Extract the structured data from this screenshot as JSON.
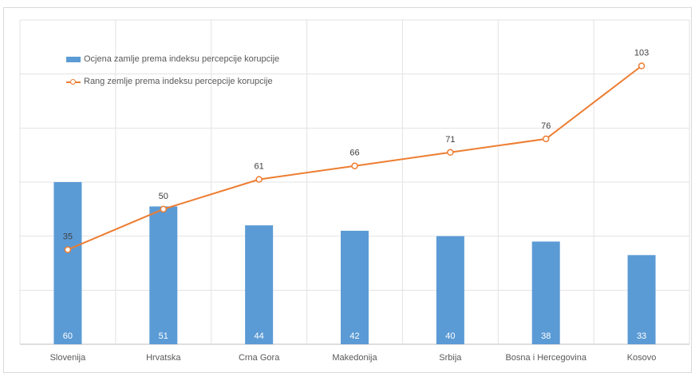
{
  "chart_data": {
    "type": "bar",
    "categories": [
      "Slovenija",
      "Hrvatska",
      "Crna Gora",
      "Makedonija",
      "Srbija",
      "Bosna i Hercegovina",
      "Kosovo"
    ],
    "series": [
      {
        "name": "Ocjena zamlje prema indeksu percepcije korupcije",
        "type": "bar",
        "color": "#5b9bd5",
        "values": [
          60,
          51,
          44,
          42,
          40,
          38,
          33
        ]
      },
      {
        "name": "Rang zemlje prema indeksu percepcije korupcije",
        "type": "line",
        "color": "#ed7d31",
        "values": [
          35,
          50,
          61,
          66,
          71,
          76,
          103
        ]
      }
    ],
    "ylim": [
      0,
      120
    ],
    "grid": true,
    "legend": "top-left"
  }
}
